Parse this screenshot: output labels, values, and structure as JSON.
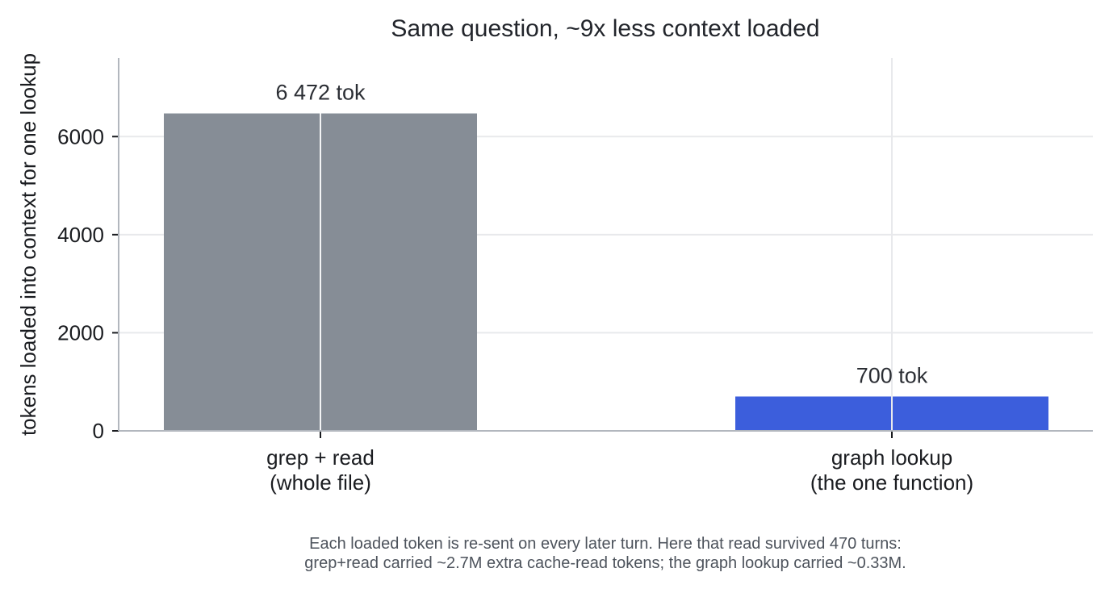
{
  "chart_data": {
    "type": "bar",
    "title": "Same question, ~9x less context loaded",
    "xlabel": "",
    "ylabel": "tokens loaded into context for one lookup",
    "categories": [
      [
        "grep + read",
        "(whole file)"
      ],
      [
        "graph lookup",
        "(the one function)"
      ]
    ],
    "values": [
      6472,
      700
    ],
    "data_labels": [
      "6 472 tok",
      "700 tok"
    ],
    "bar_colors": [
      "#868d96",
      "#3c5edc"
    ],
    "ylim": [
      0,
      7600
    ],
    "yticks": [
      0,
      2000,
      4000,
      6000
    ],
    "ytick_labels": [
      "0",
      "2000",
      "4000",
      "6000"
    ],
    "grid": true,
    "legend": "none"
  },
  "caption": {
    "line1": "Each loaded token is re-sent on every later turn. Here that read survived 470 turns:",
    "line2": "grep+read carried ~2.7M extra cache-read tokens; the graph lookup carried ~0.33M."
  },
  "colors": {
    "grid": "#e8e9ec",
    "axis": "#b2b7be",
    "text": "#1a1c20",
    "caption": "#4d535c"
  }
}
